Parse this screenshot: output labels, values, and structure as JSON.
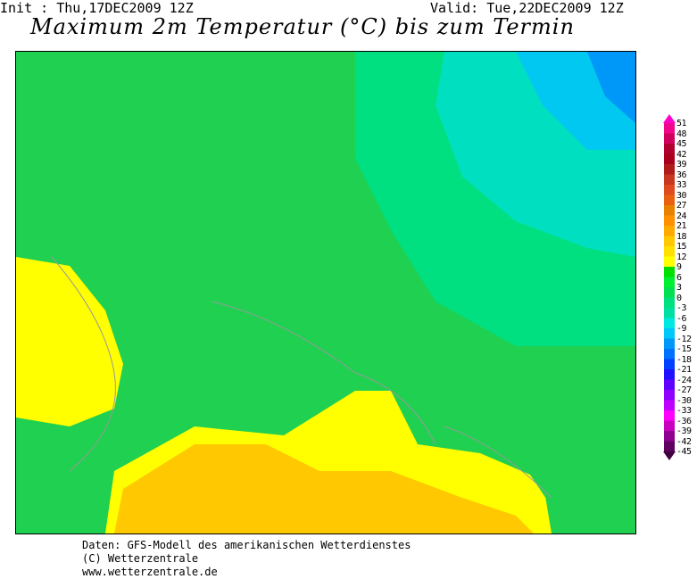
{
  "header": {
    "init": "Init : Thu,17DEC2009  12Z",
    "valid": "Valid: Tue,22DEC2009  12Z",
    "title": "Maximum 2m Temperatur (°C) bis zum Termin"
  },
  "legend": {
    "labels": [
      "51",
      "48",
      "45",
      "42",
      "39",
      "36",
      "33",
      "30",
      "27",
      "24",
      "21",
      "18",
      "15",
      "12",
      "9",
      "6",
      "3",
      "0",
      "-3",
      "-6",
      "-9",
      "-12",
      "-15",
      "-18",
      "-21",
      "-24",
      "-27",
      "-30",
      "-33",
      "-36",
      "-39",
      "-42",
      "-45"
    ],
    "colors": [
      "#f0068c",
      "#d0005e",
      "#b00030",
      "#a8001e",
      "#b01c1c",
      "#c83820",
      "#e04a20",
      "#e86010",
      "#e88000",
      "#ff9000",
      "#ffaa00",
      "#ffc800",
      "#ffe000",
      "#ffff00",
      "#00e000",
      "#00f030",
      "#00e050",
      "#00e080",
      "#00e0a0",
      "#00e8e0",
      "#00c8f8",
      "#0098f8",
      "#0070ff",
      "#0040ff",
      "#2010ff",
      "#6000ff",
      "#9000ff",
      "#c000ff",
      "#ff00ff",
      "#c800c0",
      "#900090",
      "#600060"
    ],
    "top_color": "#ff00cc",
    "bottom_color": "#400040"
  },
  "footer": {
    "line1": "Daten: GFS-Modell des amerikanischen Wetterdienstes",
    "line2": "(C) Wetterzentrale",
    "line3": "www.wetterzentrale.de"
  }
}
